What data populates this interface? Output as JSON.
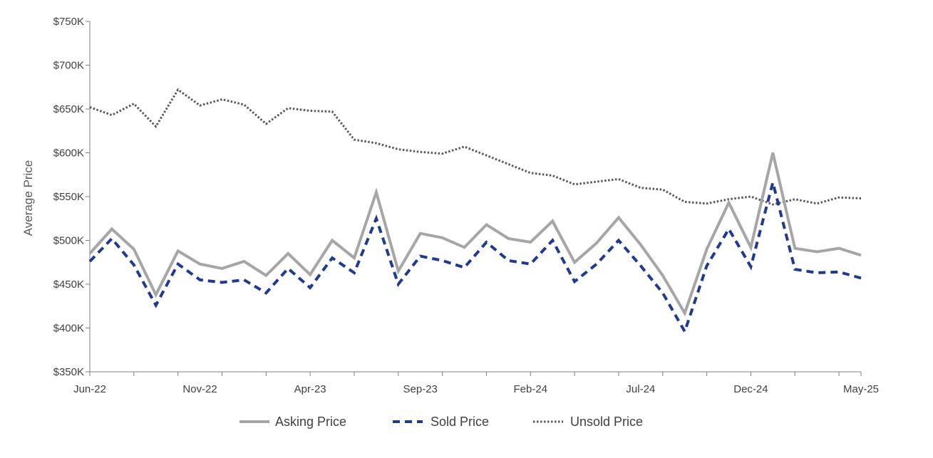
{
  "chart_data": {
    "type": "line",
    "title": "",
    "xlabel": "",
    "ylabel": "Average Price",
    "ylim": [
      350000,
      750000
    ],
    "y_ticks": [
      350000,
      400000,
      450000,
      500000,
      550000,
      600000,
      650000,
      700000,
      750000
    ],
    "y_tick_labels": [
      "$350K",
      "$400K",
      "$450K",
      "$500K",
      "$550K",
      "$600K",
      "$650K",
      "$700K",
      "$750K"
    ],
    "x": [
      "Jun-22",
      "Jul-22",
      "Aug-22",
      "Sep-22",
      "Oct-22",
      "Nov-22",
      "Dec-22",
      "Jan-23",
      "Feb-23",
      "Mar-23",
      "Apr-23",
      "May-23",
      "Jun-23",
      "Jul-23",
      "Aug-23",
      "Sep-23",
      "Oct-23",
      "Nov-23",
      "Dec-23",
      "Jan-24",
      "Feb-24",
      "Mar-24",
      "Apr-24",
      "May-24",
      "Jun-24",
      "Jul-24",
      "Aug-24",
      "Sep-24",
      "Oct-24",
      "Nov-24",
      "Dec-24",
      "Jan-25",
      "Feb-25",
      "Mar-25",
      "Apr-25",
      "May-25"
    ],
    "x_tick_labels": [
      "Jun-22",
      "Nov-22",
      "Apr-23",
      "Sep-23",
      "Feb-24",
      "Jul-24",
      "Dec-24",
      "May-25"
    ],
    "grid": false,
    "legend_position": "bottom",
    "series": [
      {
        "name": "Asking Price",
        "color": "#a6a6a6",
        "style": "solid",
        "values": [
          485000,
          513000,
          490000,
          438000,
          488000,
          473000,
          468000,
          476000,
          460000,
          485000,
          461000,
          500000,
          480000,
          555000,
          465000,
          508000,
          503000,
          492000,
          518000,
          502000,
          498000,
          522000,
          475000,
          497000,
          526000,
          495000,
          460000,
          417000,
          490000,
          543000,
          492000,
          600000,
          491000,
          487000,
          491000,
          483000
        ]
      },
      {
        "name": "Sold Price",
        "color": "#1f3a93",
        "style": "dashed",
        "values": [
          476000,
          502000,
          472000,
          426000,
          473000,
          455000,
          452000,
          455000,
          440000,
          468000,
          446000,
          480000,
          463000,
          525000,
          450000,
          482000,
          477000,
          469000,
          498000,
          477000,
          473000,
          500000,
          453000,
          473000,
          500000,
          471000,
          440000,
          396000,
          471000,
          513000,
          470000,
          566000,
          467000,
          463000,
          464000,
          457000
        ]
      },
      {
        "name": "Unsold Price",
        "color": "#595959",
        "style": "dotted",
        "values": [
          652000,
          643000,
          656000,
          630000,
          672000,
          654000,
          661000,
          655000,
          633000,
          651000,
          648000,
          647000,
          615000,
          611000,
          604000,
          601000,
          599000,
          607000,
          597000,
          587000,
          577000,
          574000,
          564000,
          567000,
          570000,
          560000,
          558000,
          544000,
          542000,
          547000,
          550000,
          541000,
          547000,
          542000,
          549000,
          548000
        ]
      }
    ]
  }
}
